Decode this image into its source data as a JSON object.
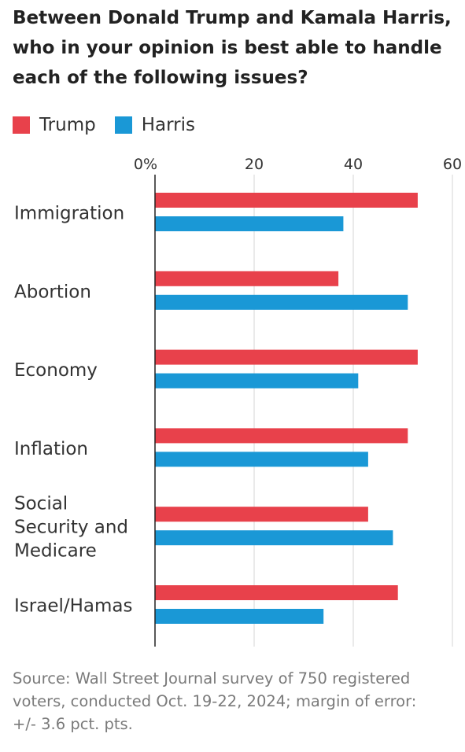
{
  "title_lines": [
    "Between Donald Trump and Kamala Harris,",
    "who in your opinion is best able to handle",
    "each of the following issues?"
  ],
  "colors": {
    "trump": "#e8414b",
    "harris": "#1a98d6"
  },
  "source_lines": [
    "Source: Wall Street Journal survey of 750 registered",
    "voters, conducted Oct. 19-22, 2024; margin of error:",
    "+/- 3.6 pct. pts."
  ],
  "chart_data": {
    "type": "bar",
    "orientation": "horizontal",
    "title": "Between Donald Trump and Kamala Harris, who in your opinion is best able to handle each of the following issues?",
    "categories": [
      [
        "Immigration"
      ],
      [
        "Abortion"
      ],
      [
        "Economy"
      ],
      [
        "Inflation"
      ],
      [
        "Social",
        "Security and",
        "Medicare"
      ],
      [
        "Israel/Hamas"
      ]
    ],
    "series": [
      {
        "name": "Trump",
        "color": "#e8414b",
        "values": [
          53,
          37,
          53,
          51,
          43,
          49
        ]
      },
      {
        "name": "Harris",
        "color": "#1a98d6",
        "values": [
          38,
          51,
          41,
          43,
          48,
          34
        ]
      }
    ],
    "xlim": [
      0,
      60
    ],
    "ticks": [
      0,
      20,
      40,
      60
    ],
    "tick_labels": [
      "0%",
      "20",
      "40",
      "60"
    ],
    "grid": true,
    "legend": "top-left"
  }
}
